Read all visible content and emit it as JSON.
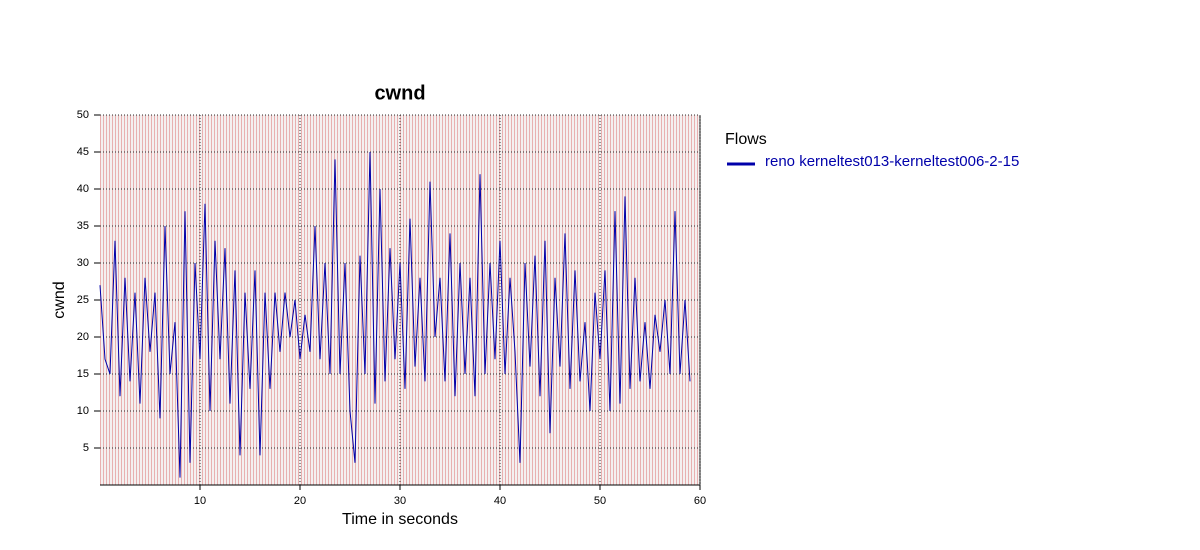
{
  "chart_data": {
    "type": "line",
    "title": "cwnd",
    "x_label": "Time in seconds",
    "y_label": "cwnd",
    "legend_title": "Flows",
    "x": [
      0,
      0.5,
      1,
      1.5,
      2,
      2.5,
      3,
      3.5,
      4,
      4.5,
      5,
      5.5,
      6,
      6.5,
      7,
      7.5,
      8,
      8.5,
      9,
      9.5,
      10,
      10.5,
      11,
      11.5,
      12,
      12.5,
      13,
      13.5,
      14,
      14.5,
      15,
      15.5,
      16,
      16.5,
      17,
      17.5,
      18,
      18.5,
      19,
      19.5,
      20,
      20.5,
      21,
      21.5,
      22,
      22.5,
      23,
      23.5,
      24,
      24.5,
      25,
      25.5,
      26,
      26.5,
      27,
      27.5,
      28,
      28.5,
      29,
      29.5,
      30,
      30.5,
      31,
      31.5,
      32,
      32.5,
      33,
      33.5,
      34,
      34.5,
      35,
      35.5,
      36,
      36.5,
      37,
      37.5,
      38,
      38.5,
      39,
      39.5,
      40,
      40.5,
      41,
      41.5,
      42,
      42.5,
      43,
      43.5,
      44,
      44.5,
      45,
      45.5,
      46,
      46.5,
      47,
      47.5,
      48,
      48.5,
      49,
      49.5,
      50,
      50.5,
      51,
      51.5,
      52,
      52.5,
      53,
      53.5,
      54,
      54.5,
      55,
      55.5,
      56,
      56.5,
      57,
      57.5,
      58,
      58.5,
      59
    ],
    "series": [
      {
        "name": "reno kerneltest013-kerneltest006-2-15",
        "color": "#0000aa",
        "values": [
          27,
          17,
          15,
          33,
          12,
          28,
          14,
          26,
          11,
          28,
          18,
          26,
          9,
          35,
          15,
          22,
          1,
          37,
          3,
          30,
          17,
          38,
          10,
          33,
          17,
          32,
          11,
          29,
          4,
          26,
          13,
          29,
          4,
          26,
          13,
          26,
          18,
          26,
          20,
          25,
          17,
          23,
          18,
          35,
          17,
          30,
          15,
          44,
          15,
          30,
          10,
          3,
          31,
          15,
          45,
          11,
          40,
          14,
          32,
          17,
          30,
          13,
          36,
          16,
          28,
          14,
          41,
          20,
          28,
          14,
          34,
          12,
          30,
          15,
          28,
          12,
          42,
          15,
          30,
          17,
          33,
          15,
          28,
          18,
          3,
          30,
          16,
          31,
          12,
          33,
          7,
          28,
          16,
          34,
          13,
          29,
          14,
          22,
          10,
          26,
          17,
          29,
          10,
          37,
          11,
          39,
          13,
          28,
          14,
          22,
          13,
          23,
          18,
          25,
          15,
          37,
          15,
          25,
          14
        ]
      }
    ],
    "xlim": [
      0,
      60
    ],
    "ylim": [
      0,
      50
    ],
    "xticks": [
      10,
      20,
      30,
      40,
      50,
      60
    ],
    "yticks": [
      5,
      10,
      15,
      20,
      25,
      30,
      35,
      40,
      45,
      50
    ],
    "grid": true
  }
}
